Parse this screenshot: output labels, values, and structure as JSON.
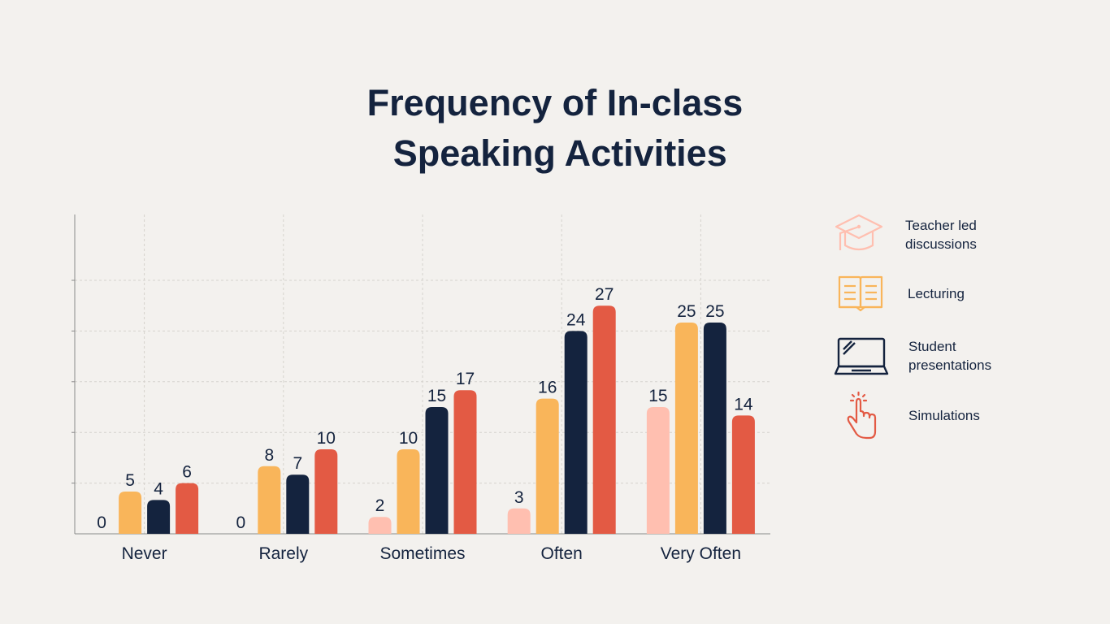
{
  "colors": {
    "background": "#f3f1ee",
    "text": "#14233e",
    "grid": "#d5d2cd",
    "axis": "#8a8a8a"
  },
  "chart_data": {
    "type": "bar",
    "title_lines": [
      "Frequency of In-class",
      " Speaking Activities"
    ],
    "categories": [
      "Never",
      "Rarely",
      "Sometimes",
      "Often",
      "Very Often"
    ],
    "ylim": [
      0,
      30
    ],
    "grid": true,
    "legend_position": "right",
    "series": [
      {
        "name": "Teacher led\ndiscussions",
        "color": "#ffbfb0",
        "icon": "graduation-cap-icon",
        "values": [
          0,
          0,
          2,
          3,
          15
        ]
      },
      {
        "name": "Lecturing",
        "color": "#f9b55a",
        "icon": "open-book-icon",
        "values": [
          5,
          8,
          10,
          16,
          25
        ]
      },
      {
        "name": "Student\npresentations",
        "color": "#14233e",
        "icon": "laptop-icon",
        "values": [
          4,
          7,
          15,
          24,
          25
        ]
      },
      {
        "name": "Simulations",
        "color": "#e35a44",
        "icon": "pointing-hand-icon",
        "values": [
          6,
          10,
          17,
          27,
          14
        ]
      }
    ]
  }
}
